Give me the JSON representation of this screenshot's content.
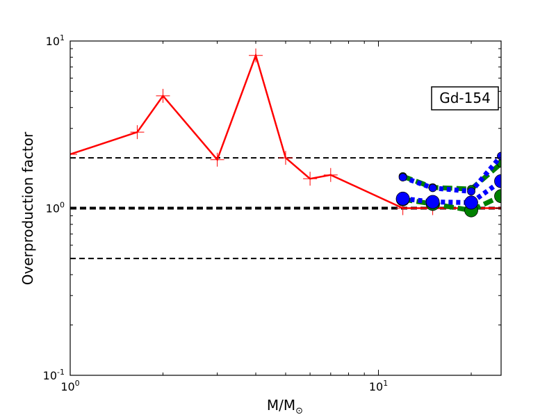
{
  "chart_data": {
    "type": "line",
    "xscale": "log",
    "yscale": "log",
    "xlim": [
      1,
      25
    ],
    "ylim": [
      0.1,
      10
    ],
    "xlabel_main": "M/M",
    "xlabel_sub": "⊙",
    "ylabel": "Overproduction factor",
    "x_ticks": [
      {
        "value": 1,
        "base": "10",
        "exp": "0"
      },
      {
        "value": 10,
        "base": "10",
        "exp": "1"
      }
    ],
    "y_ticks": [
      {
        "value": 0.1,
        "base": "10",
        "exp": "-1"
      },
      {
        "value": 1,
        "base": "10",
        "exp": "0"
      },
      {
        "value": 10,
        "base": "10",
        "exp": "1"
      }
    ],
    "annotation": "Gd-154",
    "reference_lines": [
      {
        "y": 2.0,
        "style": "thin-dashed",
        "color": "#000000"
      },
      {
        "y": 1.0,
        "style": "thick-dashed",
        "color": "#000000"
      },
      {
        "y": 0.5,
        "style": "thin-dashed",
        "color": "#000000"
      }
    ],
    "series": [
      {
        "color": "#ff0000",
        "line": "solid",
        "marker": "plus",
        "x": [
          1.0,
          1.65,
          2.0,
          3.0,
          4.0,
          5.0,
          6.0,
          7.0,
          12.0,
          15.0,
          20.0,
          25.0
        ],
        "y": [
          2.1,
          2.85,
          4.7,
          1.95,
          8.2,
          2.0,
          1.5,
          1.58,
          1.0,
          1.0,
          1.0,
          1.0
        ]
      },
      {
        "color": "#008000",
        "line": "dashed",
        "marker": "small-circle",
        "x": [
          12.0,
          15.0,
          20.0,
          25.0
        ],
        "y": [
          1.55,
          1.33,
          1.3,
          1.85
        ]
      },
      {
        "color": "#0000ff",
        "line": "dotted",
        "marker": "small-circle",
        "x": [
          12.0,
          15.0,
          20.0,
          25.0
        ],
        "y": [
          1.53,
          1.32,
          1.26,
          2.05
        ]
      },
      {
        "color": "#008000",
        "line": "dashed",
        "marker": "large-circle",
        "x": [
          12.0,
          15.0,
          20.0,
          25.0
        ],
        "y": [
          1.13,
          1.06,
          0.97,
          1.18
        ]
      },
      {
        "color": "#0000ff",
        "line": "dotted",
        "marker": "large-circle",
        "x": [
          12.0,
          15.0,
          20.0,
          25.0
        ],
        "y": [
          1.14,
          1.09,
          1.08,
          1.45
        ]
      }
    ],
    "grid": false,
    "legend": "none"
  }
}
